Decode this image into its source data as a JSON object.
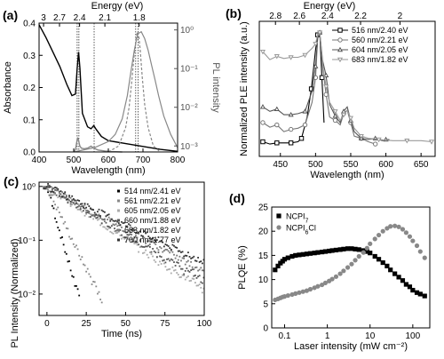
{
  "chart_data": [
    {
      "panel_label": "(a)",
      "type": "line",
      "xlabel": "Wavelength (nm)",
      "ylabel": "Absorbance",
      "y2label": "PL intensity",
      "x2label": "Energy (eV)",
      "xlim": [
        400,
        800
      ],
      "ylim": [
        0,
        0.4
      ],
      "y2lim": [
        0.0007,
        1.5
      ],
      "y2scale": "log",
      "x_ticks": [
        "400",
        "500",
        "600",
        "700",
        "800"
      ],
      "y_ticks": [
        "0.0",
        "0.1",
        "0.2",
        "0.3",
        "0.4"
      ],
      "y2_ticks": [
        "10⁻³",
        "10⁻²",
        "10⁻¹",
        "10⁰"
      ],
      "x2_ticks": [
        "3",
        "2.7",
        "2.4",
        "2.1",
        "1.8"
      ],
      "x2_tick_wavelengths": [
        413,
        459,
        517,
        590,
        689
      ],
      "vertical_dotted_lines": [
        510,
        515,
        559,
        679,
        686
      ],
      "series": [
        {
          "axis": "left",
          "color": "#000000",
          "style": "solid",
          "x": [
            400,
            410,
            420,
            440,
            460,
            480,
            495,
            505,
            510,
            514,
            518,
            525,
            540,
            550,
            558,
            565,
            580,
            600,
            650,
            700,
            750,
            800
          ],
          "y": [
            0.395,
            0.375,
            0.355,
            0.31,
            0.265,
            0.21,
            0.175,
            0.18,
            0.26,
            0.31,
            0.26,
            0.12,
            0.078,
            0.072,
            0.082,
            0.07,
            0.048,
            0.035,
            0.026,
            0.017,
            0.008,
            0.002
          ]
        },
        {
          "axis": "left",
          "color": "#888888",
          "style": "solid",
          "x": [
            500,
            505,
            508,
            511,
            514,
            518,
            522,
            530,
            540,
            550,
            558,
            570,
            590,
            610,
            640
          ],
          "y": [
            0.0,
            0.008,
            0.025,
            0.045,
            0.035,
            0.018,
            0.012,
            0.01,
            0.012,
            0.018,
            0.012,
            0.006,
            0.003,
            0.001,
            0.0
          ]
        },
        {
          "axis": "right",
          "color": "#888888",
          "style": "solid",
          "x": [
            500,
            560,
            600,
            620,
            640,
            655,
            665,
            675,
            685,
            695,
            705,
            715,
            725,
            735,
            745,
            760,
            780,
            800
          ],
          "y": [
            0.0007,
            0.0009,
            0.0013,
            0.002,
            0.005,
            0.02,
            0.08,
            0.3,
            0.8,
            0.9,
            0.6,
            0.3,
            0.12,
            0.05,
            0.02,
            0.006,
            0.002,
            0.0009
          ]
        },
        {
          "axis": "right",
          "color": "#888888",
          "style": "dashed",
          "x": [
            600,
            630,
            650,
            660,
            668,
            674,
            680,
            684,
            688,
            692,
            698,
            705,
            715,
            730,
            750
          ],
          "y": [
            0.0007,
            0.001,
            0.003,
            0.01,
            0.05,
            0.2,
            0.6,
            0.9,
            0.7,
            0.3,
            0.06,
            0.012,
            0.003,
            0.001,
            0.0007
          ]
        }
      ]
    },
    {
      "panel_label": "(b)",
      "type": "line",
      "xlabel": "Wavelength (nm)",
      "ylabel": "Normalized PLE intensity (a.u.)",
      "x2label": "Energy (eV)",
      "xlim": [
        420,
        670
      ],
      "ylim": [
        -0.1,
        1.1
      ],
      "x_ticks": [
        "450",
        "500",
        "550",
        "600",
        "650"
      ],
      "x2_ticks": [
        "2.8",
        "2.6",
        "2.4",
        "2.2",
        "2"
      ],
      "x2_tick_wavelengths": [
        443,
        477,
        517,
        564,
        620
      ],
      "legend": [
        "516 nm/2.40 eV",
        "560 nm/2.21 eV",
        "604 nm/2.05 eV",
        "683 nm/1.82 eV"
      ],
      "legend_position": "top-right",
      "series": [
        {
          "name": "516 nm/2.40 eV",
          "color": "#000000",
          "marker": "square",
          "x": [
            425,
            435,
            445,
            455,
            465,
            475,
            480,
            488,
            494,
            500,
            503,
            506,
            509,
            512
          ],
          "y": [
            0.03,
            0.01,
            0.02,
            0.02,
            0.02,
            0.03,
            0.06,
            0.25,
            0.5,
            0.85,
            0.98,
            1.0,
            0.6,
            0.2
          ]
        },
        {
          "name": "560 nm/2.21 eV",
          "color": "#777777",
          "marker": "circle",
          "x": [
            425,
            435,
            445,
            455,
            465,
            475,
            485,
            495,
            500,
            503,
            506,
            510,
            515,
            520,
            528,
            535,
            540,
            545,
            550,
            555,
            565,
            575,
            585
          ],
          "y": [
            0.2,
            0.16,
            0.18,
            0.12,
            0.14,
            0.15,
            0.18,
            0.38,
            0.6,
            0.95,
            1.0,
            0.7,
            0.45,
            0.25,
            0.22,
            0.18,
            0.28,
            0.31,
            0.2,
            0.08,
            0.06,
            0.03,
            0.01
          ]
        },
        {
          "name": "604 nm/2.05 eV",
          "color": "#555555",
          "marker": "triangle-up",
          "x": [
            425,
            435,
            445,
            455,
            465,
            475,
            485,
            495,
            500,
            503,
            506,
            510,
            515,
            520,
            528,
            535,
            540,
            545,
            550,
            555,
            565,
            575,
            585,
            595,
            600,
            605
          ],
          "y": [
            0.34,
            0.3,
            0.32,
            0.27,
            0.27,
            0.28,
            0.3,
            0.48,
            0.7,
            0.95,
            1.0,
            0.75,
            0.62,
            0.36,
            0.26,
            0.2,
            0.3,
            0.34,
            0.22,
            0.12,
            0.06,
            0.05,
            0.06,
            0.04,
            0.05,
            0.05
          ]
        },
        {
          "name": "683 nm/1.82 eV",
          "color": "#999999",
          "marker": "triangle-down",
          "x": [
            425,
            435,
            445,
            455,
            465,
            475,
            485,
            495,
            500,
            503,
            506,
            510,
            515,
            520,
            528,
            535,
            540,
            545,
            550,
            555,
            565,
            575,
            590,
            610,
            630,
            650,
            665
          ],
          "y": [
            0.83,
            0.76,
            0.79,
            0.77,
            0.78,
            0.78,
            0.8,
            0.86,
            0.9,
            0.98,
            1.0,
            0.72,
            0.52,
            0.38,
            0.3,
            0.22,
            0.27,
            0.31,
            0.24,
            0.15,
            0.08,
            0.06,
            0.05,
            0.04,
            0.04,
            0.04,
            0.03
          ]
        }
      ]
    },
    {
      "panel_label": "(c)",
      "type": "scatter",
      "xlabel": "Time (ns)",
      "ylabel": "PL Intensity (Normalized)",
      "xlim": [
        -5,
        100
      ],
      "ylim": [
        0.004,
        1.2
      ],
      "yscale": "log",
      "x_ticks": [
        "0",
        "25",
        "50",
        "75",
        "100"
      ],
      "y_ticks": [
        "10⁰",
        "10⁻¹",
        "10⁻²"
      ],
      "legend": [
        "514 nm/2.41 eV",
        "561 nm/2.21 eV",
        "605 nm/2.05 eV",
        "660 nm/1.88 eV",
        "683 nm/1.82 eV",
        "700 nm/1.77 eV"
      ],
      "legend_position": "top-right",
      "series": [
        {
          "name": "514 nm/2.41 eV",
          "color": "#000000",
          "tau": 4.2,
          "noise": 0.004
        },
        {
          "name": "561 nm/2.21 eV",
          "color": "#888888",
          "tau": 7,
          "noise": 0.003
        },
        {
          "name": "605 nm/2.05 eV",
          "color": "#aaaaaa",
          "tau": 22,
          "noise": 0.004
        },
        {
          "name": "660 nm/1.88 eV",
          "color": "#555555",
          "tau": 24,
          "noise": 0.005
        },
        {
          "name": "683 nm/1.82 eV",
          "color": "#777777",
          "tau": 27,
          "noise": 0.005
        },
        {
          "name": "700 nm/1.77 eV",
          "color": "#333333",
          "tau": 30,
          "noise": 0.006
        }
      ]
    },
    {
      "panel_label": "(d)",
      "type": "scatter",
      "xlabel": "Laser intensity (mW cm⁻²)",
      "ylabel": "PLQE (%)",
      "xscale": "log",
      "xlim": [
        0.05,
        250
      ],
      "ylim": [
        0,
        25
      ],
      "x_ticks": [
        "0.1",
        "1",
        "10",
        "100"
      ],
      "y_ticks": [
        "0",
        "5",
        "10",
        "15",
        "20",
        "25"
      ],
      "legend_position": "top-left",
      "series": [
        {
          "name": "NCPI₇",
          "legend_main": "NCPI",
          "legend_sub": "7",
          "color": "#000000",
          "marker": "square",
          "x": [
            0.06,
            0.07,
            0.08,
            0.09,
            0.1,
            0.12,
            0.15,
            0.18,
            0.22,
            0.27,
            0.33,
            0.4,
            0.5,
            0.6,
            0.75,
            0.9,
            1.1,
            1.3,
            1.6,
            2,
            2.4,
            3,
            3.7,
            4.5,
            5.5,
            7,
            8.5,
            10,
            13,
            16,
            20,
            25,
            30,
            38,
            47,
            58,
            70,
            85,
            100,
            125,
            150,
            190
          ],
          "y": [
            12.0,
            12.8,
            13.4,
            13.8,
            14.2,
            14.5,
            14.8,
            15.0,
            15.1,
            15.2,
            15.3,
            15.4,
            15.5,
            15.6,
            15.7,
            15.8,
            15.9,
            16.0,
            16.1,
            16.2,
            16.3,
            16.4,
            16.4,
            16.3,
            16.2,
            16.0,
            15.8,
            15.5,
            14.8,
            14.2,
            13.5,
            12.8,
            12.0,
            11.2,
            10.5,
            9.8,
            9.0,
            8.5,
            7.8,
            7.3,
            7.0,
            6.6
          ]
        },
        {
          "name": "NCPI₆Cl",
          "legend_main": "NCPI",
          "legend_sub": "6",
          "legend_tail": "Cl",
          "color": "#888888",
          "marker": "circle",
          "x": [
            0.06,
            0.07,
            0.08,
            0.09,
            0.1,
            0.12,
            0.15,
            0.18,
            0.22,
            0.27,
            0.33,
            0.4,
            0.5,
            0.6,
            0.75,
            0.9,
            1.1,
            1.3,
            1.6,
            2,
            2.4,
            3,
            3.7,
            4.5,
            5.5,
            7,
            8.5,
            10,
            13,
            16,
            20,
            25,
            30,
            38,
            47,
            58,
            70,
            85,
            100,
            125,
            150,
            190
          ],
          "y": [
            5.8,
            6.0,
            6.2,
            6.4,
            6.5,
            6.7,
            6.9,
            7.1,
            7.3,
            7.5,
            7.7,
            8.0,
            8.3,
            8.6,
            8.9,
            9.3,
            9.7,
            10.1,
            10.6,
            11.2,
            11.8,
            12.5,
            13.2,
            14.0,
            14.8,
            15.6,
            16.5,
            17.4,
            18.4,
            19.2,
            20.0,
            20.6,
            21.0,
            21.1,
            20.9,
            20.4,
            19.7,
            18.9,
            18.0,
            17.0,
            15.8,
            14.5
          ]
        }
      ]
    }
  ]
}
